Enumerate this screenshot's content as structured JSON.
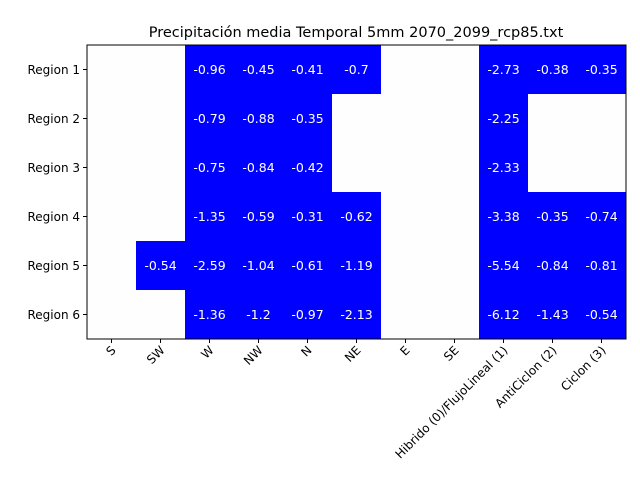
{
  "chart_data": {
    "type": "heatmap",
    "title": "Precipitación media Temporal 5mm 2070_2099_rcp85.txt",
    "columns": [
      "S",
      "SW",
      "W",
      "NW",
      "N",
      "NE",
      "E",
      "SE",
      "Hibrido (0)/FlujoLineal (1)",
      "AntiCiclon (2)",
      "Ciclon (3)"
    ],
    "rows": [
      "Region 1",
      "Region 2",
      "Region 3",
      "Region 4",
      "Region 5",
      "Region 6"
    ],
    "values": [
      [
        null,
        null,
        -0.96,
        -0.45,
        -0.41,
        -0.7,
        null,
        null,
        -2.73,
        -0.38,
        -0.35
      ],
      [
        null,
        null,
        -0.79,
        -0.88,
        -0.35,
        null,
        null,
        null,
        -2.25,
        null,
        null
      ],
      [
        null,
        null,
        -0.75,
        -0.84,
        -0.42,
        null,
        null,
        null,
        -2.33,
        null,
        null
      ],
      [
        null,
        null,
        -1.35,
        -0.59,
        -0.31,
        -0.62,
        null,
        null,
        -3.38,
        -0.35,
        -0.74
      ],
      [
        null,
        -0.54,
        -2.59,
        -1.04,
        -0.61,
        -1.19,
        null,
        null,
        -5.54,
        -0.84,
        -0.81
      ],
      [
        null,
        null,
        -1.36,
        -1.2,
        -0.97,
        -2.13,
        null,
        null,
        -6.12,
        -1.43,
        -0.54
      ]
    ],
    "colors": {
      "filled": "#0000ff",
      "empty": "#fefefe",
      "text": "#ffffff"
    }
  }
}
